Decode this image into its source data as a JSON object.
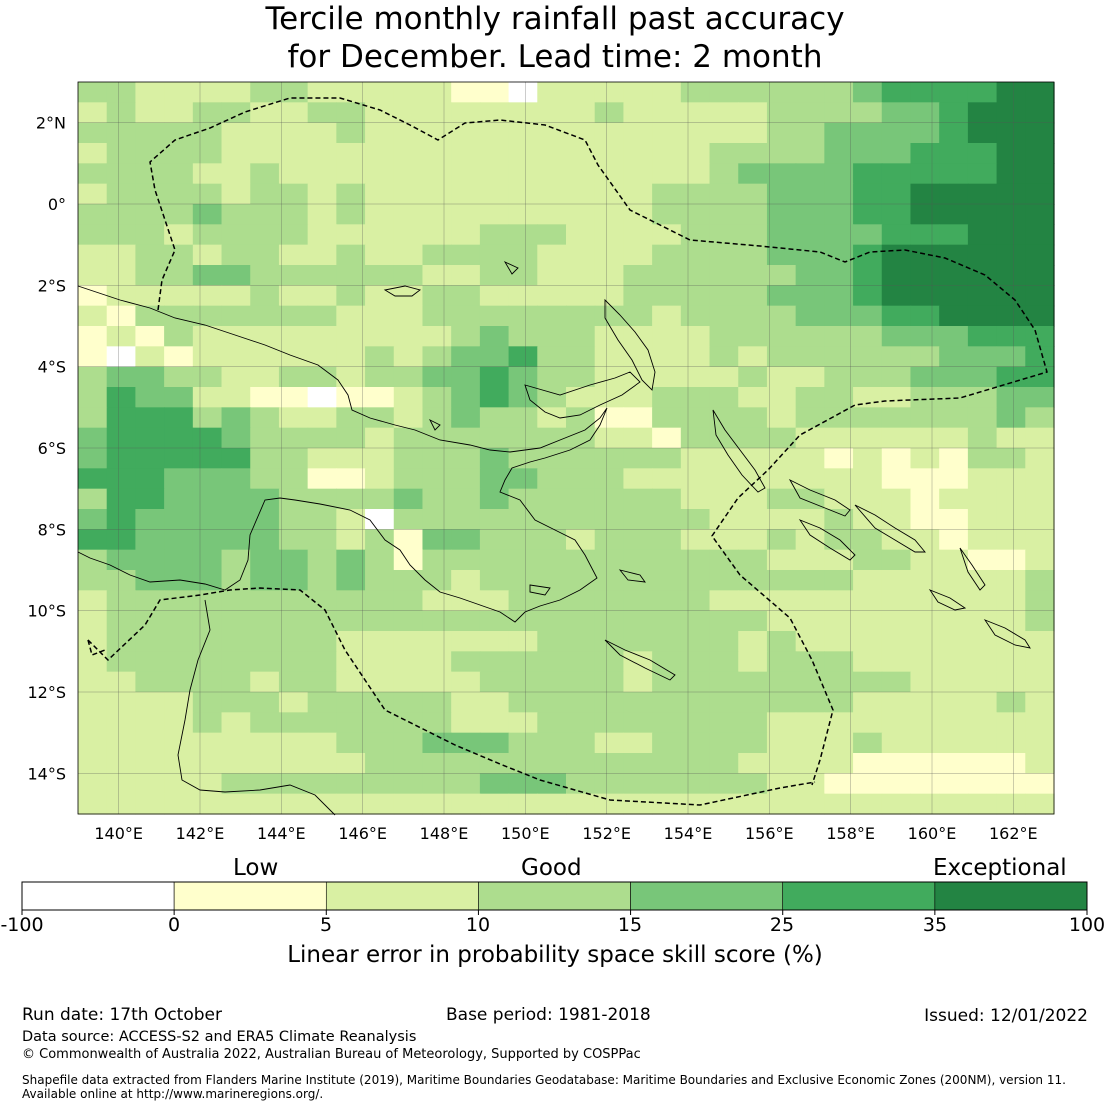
{
  "title": {
    "line1": "Tercile monthly rainfall past accuracy",
    "line2": "for December. Lead time: 2 month"
  },
  "map": {
    "lon_labels": [
      "140°E",
      "142°E",
      "144°E",
      "146°E",
      "148°E",
      "150°E",
      "152°E",
      "154°E",
      "156°E",
      "158°E",
      "160°E",
      "162°E"
    ],
    "lat_labels": [
      "2°N",
      "0°",
      "2°S",
      "4°S",
      "6°S",
      "8°S",
      "10°S",
      "12°S",
      "14°S"
    ],
    "lon_range": [
      139.0,
      163.0
    ],
    "lat_range": [
      -15.0,
      3.0
    ]
  },
  "chart_data": {
    "type": "heatmap",
    "title": "Tercile monthly rainfall past accuracy for December. Lead time: 2 month",
    "variable": "Linear error in probability space skill score (%)",
    "bins": [
      -100,
      0,
      5,
      10,
      15,
      25,
      35,
      100
    ],
    "colors": [
      "#ffffff",
      "#ffffcc",
      "#d9f0a3",
      "#addd8e",
      "#78c679",
      "#41ab5d",
      "#238443"
    ],
    "category_labels": [
      "Low",
      "Good",
      "Exceptional"
    ],
    "grid_note": "Grid cells of approx. 0.8° spanning 139°E–163°E, 15°S–3°N; values given as class index 0–6 (0 = -100 to 0 … 6 = 35 to 100), rows from north to south",
    "rows": [
      "3322223322222110222223333334555566",
      "2322332233222222223222223333445666",
      "3333322223222222222222223344445666",
      "2333322222222222222222333344455566",
      "3333223222222222222222344445555566",
      "2333323323222222222233334445566666",
      "3333433323222222222233334445566666",
      "3332333322222233322223334444555666",
      "2233233223223333222233334445666666",
      "2233443333332233222333333445666666",
      "1222223223223322222333334445666666",
      "2133333332223333333323333444556666",
      "1213222222222343332222333333444555",
      "1021222222323445332222323333334445",
      "3443322332334454332222232233344455",
      "3544221101123454322233322332233344",
      "3555343223323433231133332333333343",
      "4555543333233333332213333222222322",
      "4555553322233343333332222212121332",
      "5554443311233344333222222222111222",
      "3554444333343343333332223322212222",
      "4544444332033333333333222232211222",
      "5544444332314433323332223233221222",
      "3444434434313333333333332223322112",
      "3344434434333233333333333332222223",
      "2333333333332223333333222222222223",
      "2333333333333333333333332222222223",
      "2333333332222222333333323222222222",
      "2333333332222333333233323332222222",
      "2233332332222233333233333333322222",
      "2222333233333223333333333332222232",
      "2222323333333222333333332222222222",
      "2222222223334443332233332223222222",
      "2222222222333333333333322221111112",
      "2222233333333344433333332211111111",
      "2222222222222222222222222222222222"
    ]
  },
  "colorbar": {
    "ticks": [
      "-100",
      "0",
      "5",
      "10",
      "15",
      "25",
      "35",
      "100"
    ],
    "title": "Linear error in probability space skill score (%)"
  },
  "footer": {
    "run_date": "Run date: 17th October",
    "base_period": "Base period: 1981-2018",
    "issued": "Issued: 12/01/2022",
    "data_source": "Data source: ACCESS-S2 and ERA5 Climate Reanalysis",
    "copyright": "© Commonwealth of Australia 2022, Australian Bureau of Meteorology, Supported by COSPPac",
    "shapefile_line1": "Shapefile data extracted from Flanders Marine Institute (2019), Maritime Boundaries Geodatabase: Maritime Boundaries and Exclusive Economic Zones (200NM), version 11.",
    "shapefile_line2": "Available online at http://www.marineregions.org/."
  }
}
